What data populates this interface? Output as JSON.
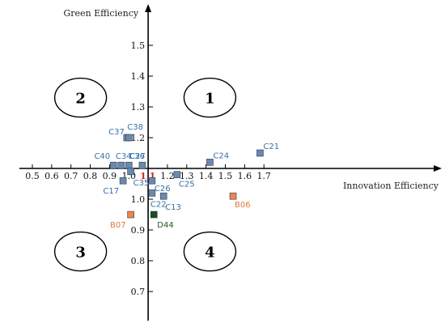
{
  "chart_data": {
    "type": "scatter",
    "xlabel": "Innovation Efficiency",
    "ylabel": "Green Efficiency",
    "origin": {
      "x": 1.1,
      "y": 1.1,
      "label": "1.1"
    },
    "xlim": [
      0.45,
      1.75
    ],
    "ylim": [
      0.65,
      1.6
    ],
    "x_ticks": [
      0.5,
      0.6,
      0.7,
      0.8,
      0.9,
      1.0,
      1.2,
      1.3,
      1.4,
      1.5,
      1.6,
      1.7
    ],
    "x_tick_labels": [
      "0.5",
      "0.6",
      "0.7",
      "0.8",
      "0.9",
      "1.0",
      "1.2",
      "1.3",
      "1.4",
      "1.5",
      "1.6",
      "1.7"
    ],
    "y_ticks": [
      1.5,
      1.4,
      1.3,
      1.2,
      1.0,
      0.9,
      0.8,
      0.7
    ],
    "y_tick_labels": [
      "1.5",
      "1.4",
      "1.3",
      "1.2",
      "1.0",
      "0.9",
      "0.8",
      "0.7"
    ],
    "colors": {
      "blue_marker": "#6b89ac",
      "blue_label": "#3a6ea5",
      "orange_marker": "#e8874e",
      "orange_label": "#e07a3c",
      "green_marker": "#1a4d1a",
      "green_label": "#1f5a1f",
      "origin_label": "#e02020"
    },
    "quadrants": [
      {
        "label": "1",
        "x": 1.42,
        "y": 1.33
      },
      {
        "label": "2",
        "x": 0.75,
        "y": 1.33
      },
      {
        "label": "3",
        "x": 0.75,
        "y": 0.83
      },
      {
        "label": "4",
        "x": 1.42,
        "y": 0.83
      }
    ],
    "points": [
      {
        "label": "C21",
        "x": 1.68,
        "y": 1.15,
        "color": "blue"
      },
      {
        "label": "C24",
        "x": 1.42,
        "y": 1.12,
        "color": "blue"
      },
      {
        "label": "C37",
        "x": 0.99,
        "y": 1.2,
        "color": "blue"
      },
      {
        "label": "C38",
        "x": 1.0,
        "y": 1.2,
        "color": "blue"
      },
      {
        "label": "C40",
        "x": 0.92,
        "y": 1.11,
        "color": "blue"
      },
      {
        "label": "C34",
        "x": 0.96,
        "y": 1.11,
        "color": "blue"
      },
      {
        "label": "C36",
        "x": 1.0,
        "y": 1.11,
        "color": "blue"
      },
      {
        "label": "C27",
        "x": 1.07,
        "y": 1.11,
        "color": "blue"
      },
      {
        "label": "C35",
        "x": 1.01,
        "y": 1.09,
        "color": "blue"
      },
      {
        "label": "C17",
        "x": 0.97,
        "y": 1.06,
        "color": "blue"
      },
      {
        "label": "C25",
        "x": 1.25,
        "y": 1.08,
        "color": "blue"
      },
      {
        "label": "C26",
        "x": 1.12,
        "y": 1.06,
        "color": "blue"
      },
      {
        "label": "C22",
        "x": 1.12,
        "y": 1.02,
        "color": "blue"
      },
      {
        "label": "C13",
        "x": 1.18,
        "y": 1.01,
        "color": "blue"
      },
      {
        "label": "B06",
        "x": 1.54,
        "y": 1.01,
        "color": "orange"
      },
      {
        "label": "B07",
        "x": 1.01,
        "y": 0.95,
        "color": "orange"
      },
      {
        "label": "D44",
        "x": 1.13,
        "y": 0.95,
        "color": "green"
      }
    ]
  }
}
